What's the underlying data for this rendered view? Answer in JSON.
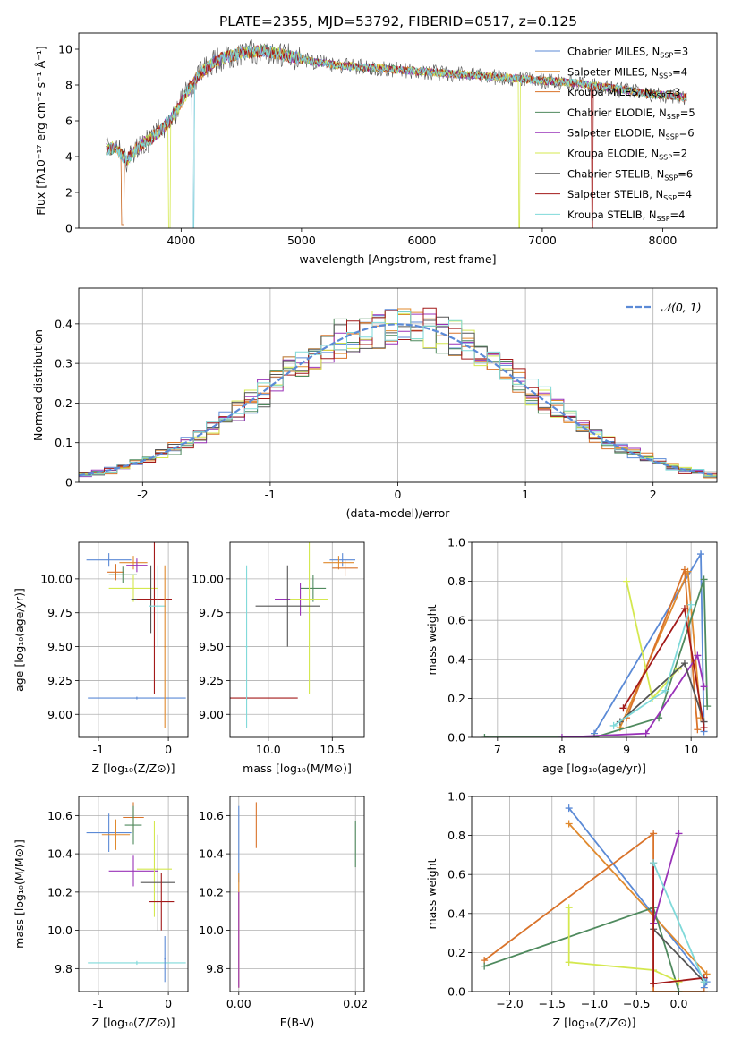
{
  "figure": {
    "title": "PLATE=2355, MJD=53792, FIBERID=0517, z=0.125"
  },
  "models": [
    {
      "name": "Chabrier MILES",
      "nssp": "3",
      "color": "#5b8ad6"
    },
    {
      "name": "Salpeter MILES",
      "nssp": "4",
      "color": "#e08a2e"
    },
    {
      "name": "Kroupa MILES",
      "nssp": "3",
      "color": "#d9732a"
    },
    {
      "name": "Chabrier ELODIE",
      "nssp": "5",
      "color": "#4f8a5e"
    },
    {
      "name": "Salpeter ELODIE",
      "nssp": "6",
      "color": "#9932b8"
    },
    {
      "name": "Kroupa ELODIE",
      "nssp": "2",
      "color": "#d4e84f"
    },
    {
      "name": "Chabrier STELIB",
      "nssp": "6",
      "color": "#555555"
    },
    {
      "name": "Salpeter STELIB",
      "nssp": "4",
      "color": "#a31a1a"
    },
    {
      "name": "Kroupa STELIB",
      "nssp": "4",
      "color": "#7fd9d9"
    }
  ],
  "chart_data": [
    {
      "id": "spectrum",
      "type": "line",
      "xlabel": "wavelength [Angstrom, rest frame]",
      "ylabel": "Flux [fλ10⁻¹⁷ erg cm⁻² s⁻¹ Å⁻¹]",
      "xlim": [
        3150,
        8450
      ],
      "ylim": [
        0,
        10.9
      ],
      "xticks": [
        4000,
        5000,
        6000,
        7000,
        8000
      ],
      "yticks": [
        0,
        2,
        4,
        6,
        8,
        10
      ],
      "data_x": [
        3380,
        3450,
        3550,
        3650,
        3750,
        3850,
        3950,
        4050,
        4150,
        4300,
        4500,
        4700,
        4900,
        5100,
        5300,
        5500,
        5700,
        5900,
        6100,
        6300,
        6500,
        6700,
        6900,
        7100,
        7300,
        7500,
        7700,
        7900,
        8050,
        8200
      ],
      "data_y": [
        4.4,
        4.5,
        3.8,
        4.6,
        5.0,
        5.6,
        6.4,
        7.6,
        8.6,
        9.4,
        9.8,
        9.9,
        9.6,
        9.3,
        9.1,
        9.0,
        8.9,
        8.8,
        8.7,
        8.6,
        8.5,
        8.4,
        8.3,
        8.2,
        8.1,
        7.9,
        7.7,
        7.5,
        7.4,
        7.3
      ],
      "legend": "upper right",
      "grid": false
    },
    {
      "id": "residuals",
      "type": "area",
      "xlabel": "(data-model)/error",
      "ylabel": "Normed distribution",
      "xlim": [
        -2.5,
        2.5
      ],
      "ylim": [
        0,
        0.49
      ],
      "xticks": [
        -2,
        -1,
        0,
        1,
        2
      ],
      "yticks": [
        0.0,
        0.1,
        0.2,
        0.3,
        0.4
      ],
      "bin_width": 0.1,
      "reference_label": "𝒩(0, 1)",
      "reference_color": "#5b8ad6",
      "legend": "upper right",
      "grid": true
    },
    {
      "id": "age_vs_Z",
      "type": "scatter",
      "xlabel": "Z [log₁₀(Z/Z⊙)]",
      "ylabel": "age  [log₁₀(age/yr)]",
      "xlim": [
        -1.28,
        0.28
      ],
      "ylim": [
        8.83,
        10.27
      ],
      "xticks": [
        -1,
        0
      ],
      "yticks": [
        9.0,
        9.25,
        9.5,
        9.75,
        10.0
      ],
      "ytick_labels": [
        "9.00",
        "9.25",
        "9.50",
        "9.75",
        "10.00"
      ],
      "points": [
        {
          "x": -0.85,
          "y": 10.14,
          "xerr": 0.32,
          "yerr": 0.05
        },
        {
          "x": -0.5,
          "y": 10.12,
          "xerr": 0.2,
          "yerr": 0.05
        },
        {
          "x": -0.75,
          "y": 10.05,
          "xerr": 0.12,
          "yerr": 0.06
        },
        {
          "x": -0.65,
          "y": 10.03,
          "xerr": 0.2,
          "yerr": 0.06
        },
        {
          "x": -0.45,
          "y": 10.1,
          "xerr": 0.15,
          "yerr": 0.05
        },
        {
          "x": -0.5,
          "y": 9.93,
          "xerr": 0.35,
          "yerr": 0.1
        },
        {
          "x": -0.25,
          "y": 9.85,
          "xerr": 0.28,
          "yerr": 0.25
        },
        {
          "x": -0.2,
          "y": 9.85,
          "xerr": 0.25,
          "yerr": 0.7
        },
        {
          "x": -0.15,
          "y": 9.8,
          "xerr": 0.12,
          "yerr": 0.3
        },
        {
          "x": -0.45,
          "y": 9.12,
          "xerr": 0.7,
          "yerr": 0.01
        },
        {
          "x": -0.05,
          "y": 9.5,
          "xerr": 0.01,
          "yerr": 0.6
        }
      ],
      "grid": true
    },
    {
      "id": "age_vs_mass",
      "type": "scatter",
      "xlabel": "mass [log₁₀(M/M⊙)]",
      "ylabel": "",
      "xlim": [
        9.7,
        10.75
      ],
      "ylim": [
        8.83,
        10.27
      ],
      "xticks": [
        10.0,
        10.5
      ],
      "xtick_labels": [
        "10.0",
        "10.5"
      ],
      "yticks": [
        9.0,
        9.25,
        9.5,
        9.75,
        10.0
      ],
      "ytick_labels": [
        "9.00",
        "9.25",
        "9.50",
        "9.75",
        "10.00"
      ],
      "points": [
        {
          "x": 10.58,
          "y": 10.14,
          "xerr": 0.1,
          "yerr": 0.05
        },
        {
          "x": 10.55,
          "y": 10.12,
          "xerr": 0.12,
          "yerr": 0.05
        },
        {
          "x": 10.6,
          "y": 10.08,
          "xerr": 0.1,
          "yerr": 0.06
        },
        {
          "x": 10.35,
          "y": 9.93,
          "xerr": 0.1,
          "yerr": 0.1
        },
        {
          "x": 10.25,
          "y": 9.85,
          "xerr": 0.2,
          "yerr": 0.12
        },
        {
          "x": 10.32,
          "y": 9.85,
          "xerr": 0.15,
          "yerr": 0.7
        },
        {
          "x": 10.15,
          "y": 9.8,
          "xerr": 0.25,
          "yerr": 0.3
        },
        {
          "x": 9.83,
          "y": 9.12,
          "xerr": 0.4,
          "yerr": 0.01
        },
        {
          "x": 9.83,
          "y": 9.5,
          "xerr": 0.01,
          "yerr": 0.6
        }
      ],
      "grid": true
    },
    {
      "id": "weight_vs_age",
      "type": "line",
      "xlabel": "age  [log₁₀(age/yr)]",
      "ylabel": "mass weight",
      "xlim": [
        6.6,
        10.4
      ],
      "ylim": [
        0,
        1.0
      ],
      "xticks": [
        7,
        8,
        9,
        10
      ],
      "yticks": [
        0.0,
        0.2,
        0.4,
        0.6,
        0.8,
        1.0
      ],
      "ytick_labels": [
        "0.0",
        "0.2",
        "0.4",
        "0.6",
        "0.8",
        "1.0"
      ],
      "series": [
        {
          "x": [
            8.5,
            10.15,
            10.2
          ],
          "y": [
            0.02,
            0.94,
            0.03
          ]
        },
        {
          "x": [
            8.9,
            9.95,
            10.15
          ],
          "y": [
            0.05,
            0.85,
            0.1
          ]
        },
        {
          "x": [
            9.0,
            9.9,
            10.1
          ],
          "y": [
            0.1,
            0.86,
            0.04
          ]
        },
        {
          "x": [
            6.8,
            8.5,
            9.5,
            10.2,
            10.25
          ],
          "y": [
            0.0,
            0.0,
            0.1,
            0.81,
            0.16
          ]
        },
        {
          "x": [
            8.0,
            9.3,
            10.1,
            10.2
          ],
          "y": [
            0.0,
            0.02,
            0.42,
            0.26
          ]
        },
        {
          "x": [
            9.0,
            9.4,
            9.8
          ],
          "y": [
            0.8,
            0.2,
            0.35
          ]
        },
        {
          "x": [
            8.9,
            9.9,
            10.2
          ],
          "y": [
            0.08,
            0.38,
            0.08
          ]
        },
        {
          "x": [
            8.95,
            9.9,
            10.2
          ],
          "y": [
            0.15,
            0.66,
            0.05
          ]
        },
        {
          "x": [
            8.8,
            9.6,
            10.0
          ],
          "y": [
            0.06,
            0.24,
            0.68
          ]
        }
      ],
      "grid": true
    },
    {
      "id": "mass_vs_Z",
      "type": "scatter",
      "xlabel": "Z [log₁₀(Z/Z⊙)]",
      "ylabel": "mass [log₁₀(M/M⊙)]",
      "xlim": [
        -1.28,
        0.28
      ],
      "ylim": [
        9.68,
        10.7
      ],
      "xticks": [
        -1,
        0
      ],
      "yticks": [
        9.8,
        10.0,
        10.2,
        10.4,
        10.6
      ],
      "ytick_labels": [
        "9.8",
        "10.0",
        "10.2",
        "10.4",
        "10.6"
      ],
      "points": [
        {
          "x": -0.85,
          "y": 10.51,
          "xerr": 0.32,
          "yerr": 0.1
        },
        {
          "x": -0.75,
          "y": 10.5,
          "xerr": 0.2,
          "yerr": 0.08
        },
        {
          "x": -0.5,
          "y": 10.59,
          "xerr": 0.15,
          "yerr": 0.08
        },
        {
          "x": -0.5,
          "y": 10.55,
          "xerr": 0.12,
          "yerr": 0.1
        },
        {
          "x": -0.5,
          "y": 10.31,
          "xerr": 0.35,
          "yerr": 0.08
        },
        {
          "x": -0.2,
          "y": 10.32,
          "xerr": 0.25,
          "yerr": 0.25
        },
        {
          "x": -0.15,
          "y": 10.25,
          "xerr": 0.25,
          "yerr": 0.25
        },
        {
          "x": -0.1,
          "y": 10.15,
          "xerr": 0.18,
          "yerr": 0.15
        },
        {
          "x": -0.45,
          "y": 9.83,
          "xerr": 0.7,
          "yerr": 0.01
        },
        {
          "x": -0.05,
          "y": 9.85,
          "xerr": 0.01,
          "yerr": 0.12
        }
      ],
      "grid": true
    },
    {
      "id": "mass_vs_ebv",
      "type": "scatter",
      "xlabel": "E(B-V)",
      "ylabel": "",
      "xlim": [
        -0.0015,
        0.0215
      ],
      "ylim": [
        9.68,
        10.7
      ],
      "xticks": [
        0.0,
        0.02
      ],
      "xtick_labels": [
        "0.00",
        "0.02"
      ],
      "yticks": [
        9.8,
        10.0,
        10.2,
        10.4,
        10.6
      ],
      "ytick_labels": [
        "9.8",
        "10.0",
        "10.2",
        "10.4",
        "10.6"
      ],
      "points": [
        {
          "x": 0.0,
          "y": 10.45,
          "xerr": 0,
          "yerr": 0.2
        },
        {
          "x": 0.0,
          "y": 10.0,
          "xerr": 0,
          "yerr": 0.3
        },
        {
          "x": 0.003,
          "y": 10.55,
          "xerr": 0,
          "yerr": 0.12
        },
        {
          "x": 0.02,
          "y": 10.45,
          "xerr": 0,
          "yerr": 0.12
        },
        {
          "x": 0.0,
          "y": 9.95,
          "xerr": 0,
          "yerr": 0.25
        }
      ],
      "grid": true
    },
    {
      "id": "weight_vs_Z",
      "type": "line",
      "xlabel": "Z [log₁₀(Z/Z⊙)]",
      "ylabel": "mass weight",
      "xlim": [
        -2.45,
        0.45
      ],
      "ylim": [
        0,
        1.0
      ],
      "xticks": [
        -2.0,
        -1.5,
        -1.0,
        -0.5,
        0.0
      ],
      "xtick_labels": [
        "−2.0",
        "−1.5",
        "−1.0",
        "−0.5",
        "0.0"
      ],
      "yticks": [
        0.0,
        0.2,
        0.4,
        0.6,
        0.8,
        1.0
      ],
      "ytick_labels": [
        "0.0",
        "0.2",
        "0.4",
        "0.6",
        "0.8",
        "1.0"
      ],
      "series": [
        {
          "x": [
            -1.3,
            0.33,
            0.3
          ],
          "y": [
            0.94,
            0.05,
            0.02
          ]
        },
        {
          "x": [
            -1.3,
            0.33
          ],
          "y": [
            0.86,
            0.09
          ]
        },
        {
          "x": [
            -2.3,
            -0.3,
            -0.3,
            0.3
          ],
          "y": [
            0.16,
            0.81,
            0.0,
            0.0
          ]
        },
        {
          "x": [
            -2.3,
            -0.3,
            0.0
          ],
          "y": [
            0.13,
            0.43,
            0.0
          ]
        },
        {
          "x": [
            -0.3,
            0.0
          ],
          "y": [
            0.35,
            0.81
          ]
        },
        {
          "x": [
            -1.3,
            -1.3,
            -0.3,
            0.0
          ],
          "y": [
            0.43,
            0.15,
            0.11,
            0.05
          ]
        },
        {
          "x": [
            -0.3,
            0.3
          ],
          "y": [
            0.32,
            0.05
          ]
        },
        {
          "x": [
            -0.3,
            -0.3,
            0.3
          ],
          "y": [
            0.66,
            0.04,
            0.07
          ]
        },
        {
          "x": [
            -0.3,
            0.3
          ],
          "y": [
            0.66,
            0.05
          ]
        }
      ],
      "grid": true
    }
  ]
}
